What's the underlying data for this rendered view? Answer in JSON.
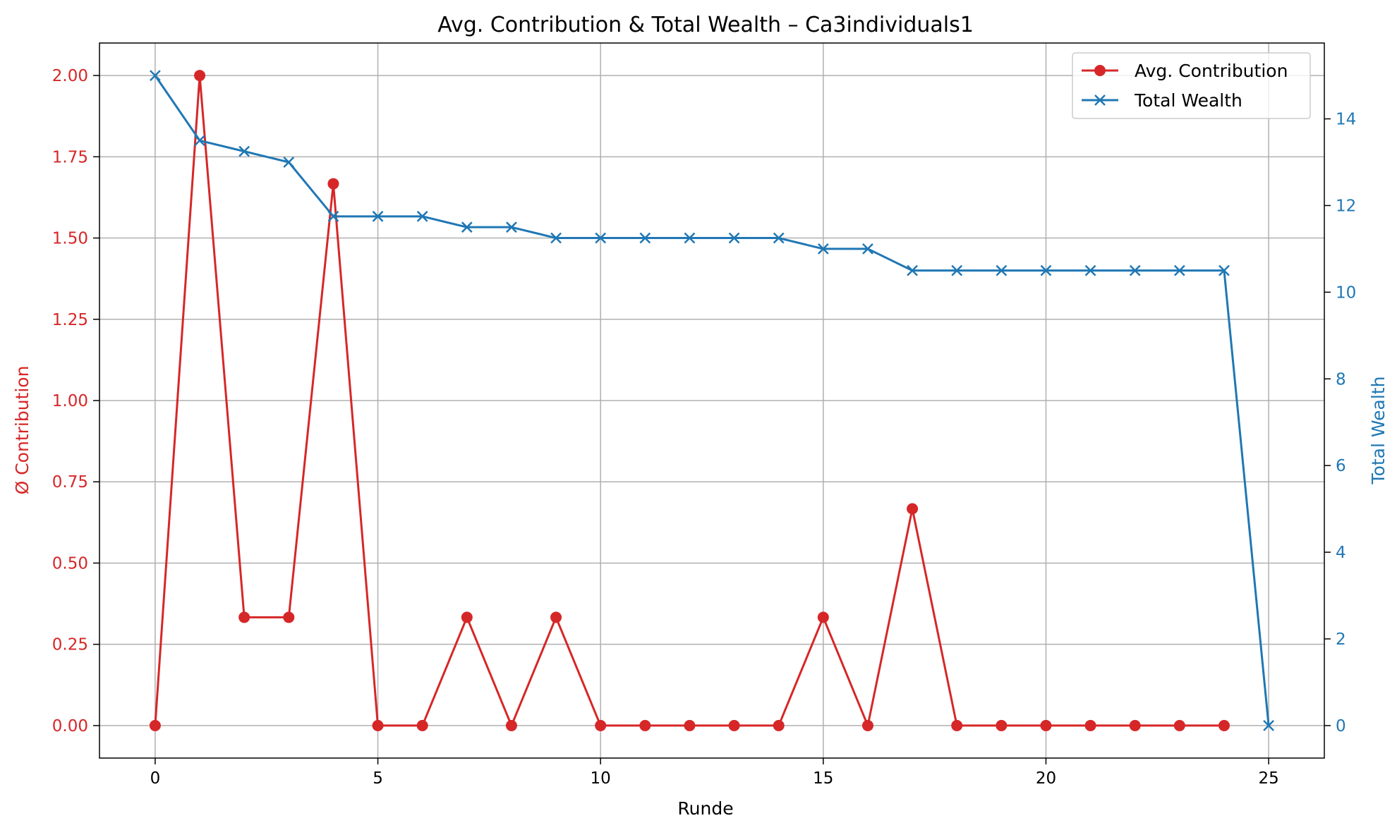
{
  "colors": {
    "contribution": "#d62728",
    "wealth": "#1f77b4",
    "grid": "#b0b0b0",
    "axis": "#000000"
  },
  "chart_data": {
    "type": "line",
    "title": "Avg. Contribution & Total Wealth – Ca3individuals1",
    "xlabel": "Runde",
    "ylabel_left": "Ø Contribution",
    "ylabel_right": "Total Wealth",
    "xlim": [
      -1.25,
      26.25
    ],
    "ylim_left": [
      -0.1,
      2.1
    ],
    "ylim_right": [
      -0.75,
      15.75
    ],
    "xticks": [
      0,
      5,
      10,
      15,
      20,
      25
    ],
    "yticks_left": [
      "0.00",
      "0.25",
      "0.50",
      "0.75",
      "1.00",
      "1.25",
      "1.50",
      "1.75",
      "2.00"
    ],
    "yticks_right": [
      0,
      2,
      4,
      6,
      8,
      10,
      12,
      14
    ],
    "grid": true,
    "legend_position": "top-right",
    "series": [
      {
        "name": "Avg. Contribution",
        "axis": "left",
        "marker": "circle",
        "x": [
          0,
          1,
          2,
          3,
          4,
          5,
          6,
          7,
          8,
          9,
          10,
          11,
          12,
          13,
          14,
          15,
          16,
          17,
          18,
          19,
          20,
          21,
          22,
          23,
          24
        ],
        "values": [
          0,
          2.0,
          0.333,
          0.333,
          1.667,
          0,
          0,
          0.333,
          0,
          0.333,
          0,
          0,
          0,
          0,
          0,
          0.333,
          0,
          0.667,
          0,
          0,
          0,
          0,
          0,
          0,
          0
        ]
      },
      {
        "name": "Total Wealth",
        "axis": "right",
        "marker": "x",
        "x": [
          0,
          1,
          2,
          3,
          4,
          5,
          6,
          7,
          8,
          9,
          10,
          11,
          12,
          13,
          14,
          15,
          16,
          17,
          18,
          19,
          20,
          21,
          22,
          23,
          24,
          25
        ],
        "values": [
          15,
          13.5,
          13.25,
          13,
          11.75,
          11.75,
          11.75,
          11.5,
          11.5,
          11.25,
          11.25,
          11.25,
          11.25,
          11.25,
          11.25,
          11,
          11,
          10.5,
          10.5,
          10.5,
          10.5,
          10.5,
          10.5,
          10.5,
          10.5,
          0
        ]
      }
    ]
  }
}
